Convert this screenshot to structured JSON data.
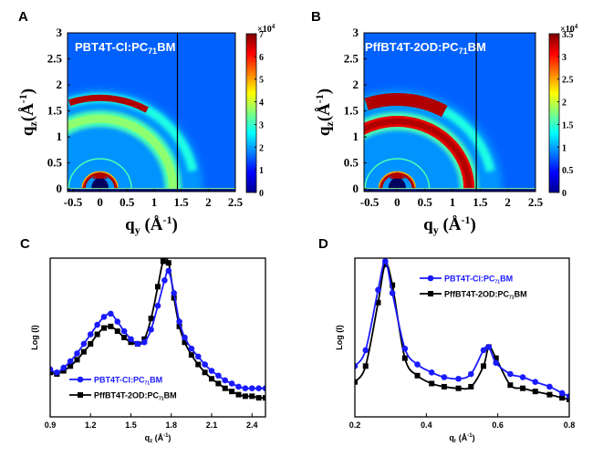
{
  "chart_data": [
    {
      "panel": "A",
      "type": "heatmap",
      "title": "PBT4T-Cl:PC71BM",
      "title_parts": {
        "main": "PBT4T-Cl:PC",
        "sub": "71",
        "tail": "BM"
      },
      "xlabel": "q_y (Å^-1)",
      "ylabel": "q_z (Å^-1)",
      "xlim": [
        -0.6,
        2.5
      ],
      "ylim": [
        -0.05,
        3
      ],
      "xticks": [
        "-0.5",
        "0",
        "0.5",
        "1",
        "1.5",
        "2",
        "2.5"
      ],
      "xtick_values": [
        -0.5,
        0,
        0.5,
        1,
        1.5,
        2,
        2.5
      ],
      "yticks": [
        "0",
        "0.5",
        "1",
        "1.5",
        "2",
        "2.5",
        "3"
      ],
      "ytick_values": [
        0,
        0.5,
        1,
        1.5,
        2,
        2.5,
        3
      ],
      "colorbar": {
        "min": 0,
        "max": 7,
        "multiplier": "×10^4",
        "ticks": [
          "0",
          "1",
          "2",
          "3",
          "4",
          "5",
          "6",
          "7"
        ]
      },
      "features": [
        {
          "name": "lamellar ring",
          "q": 0.3,
          "intensity": 7
        },
        {
          "name": "second-order ring",
          "q": 0.58,
          "intensity": 2.5
        },
        {
          "name": "pi-pi arc (out-of-plane)",
          "q": 1.75,
          "intensity": 7
        },
        {
          "name": "amorphous ring",
          "q": 1.35,
          "intensity": 4
        },
        {
          "name": "detector gap",
          "q": 1.43
        }
      ],
      "colormap": "jet"
    },
    {
      "panel": "B",
      "type": "heatmap",
      "title": "PffBT4T-2OD:PC71BM",
      "title_parts": {
        "main": "PffBT4T-2OD:PC",
        "sub": "71",
        "tail": "BM"
      },
      "xlabel": "q_y (Å^-1)",
      "ylabel": "q_z (Å^-1)",
      "xlim": [
        -0.6,
        2.5
      ],
      "ylim": [
        -0.05,
        3
      ],
      "xticks": [
        "-0.5",
        "0",
        "0.5",
        "1",
        "1.5",
        "2",
        "2.5"
      ],
      "xtick_values": [
        -0.5,
        0,
        0.5,
        1,
        1.5,
        2,
        2.5
      ],
      "yticks": [
        "0",
        "0.5",
        "1",
        "1.5",
        "2",
        "2.5",
        "3"
      ],
      "ytick_values": [
        0,
        0.5,
        1,
        1.5,
        2,
        2.5,
        3
      ],
      "colorbar": {
        "min": 0,
        "max": 3.5,
        "multiplier": "×10^4",
        "ticks": [
          "0",
          "0.5",
          "1",
          "1.5",
          "2",
          "2.5",
          "3",
          "3.5"
        ]
      },
      "features": [
        {
          "name": "lamellar ring",
          "q": 0.3,
          "intensity": 3.5
        },
        {
          "name": "second-order ring",
          "q": 0.58,
          "intensity": 3
        },
        {
          "name": "pi-pi arc (out-of-plane)",
          "q": 1.72,
          "intensity": 3.5
        },
        {
          "name": "amorphous ring",
          "q": 1.3,
          "intensity": 3.5
        },
        {
          "name": "detector gap",
          "q": 1.43
        }
      ],
      "colormap": "jet"
    },
    {
      "panel": "C",
      "type": "line",
      "xlabel": "q_z (Å^-1)",
      "ylabel": "Log (I)",
      "xlim": [
        0.9,
        2.5
      ],
      "ylim": [
        0,
        1
      ],
      "xticks": [
        "0.9",
        "1.2",
        "1.5",
        "1.8",
        "2.1",
        "2.4"
      ],
      "xtick_values": [
        0.9,
        1.2,
        1.5,
        1.8,
        2.1,
        2.4
      ],
      "legend_position": "lower-left",
      "series": [
        {
          "name": "PBT4T-Cl:PC71BM",
          "name_parts": {
            "main": "PBT4T-Cl:PC",
            "sub": "71",
            "tail": "BM"
          },
          "color": "#1a1aff",
          "marker": "circle",
          "x": [
            0.9,
            0.95,
            1.0,
            1.05,
            1.1,
            1.15,
            1.2,
            1.25,
            1.3,
            1.35,
            1.4,
            1.45,
            1.5,
            1.55,
            1.6,
            1.65,
            1.7,
            1.75,
            1.78,
            1.82,
            1.86,
            1.9,
            1.95,
            2.0,
            2.05,
            2.1,
            2.15,
            2.2,
            2.25,
            2.3,
            2.35,
            2.4,
            2.45,
            2.5
          ],
          "y": [
            0.3,
            0.28,
            0.31,
            0.35,
            0.4,
            0.46,
            0.52,
            0.58,
            0.63,
            0.65,
            0.6,
            0.54,
            0.49,
            0.46,
            0.47,
            0.55,
            0.7,
            0.86,
            0.92,
            0.78,
            0.6,
            0.5,
            0.43,
            0.38,
            0.33,
            0.29,
            0.26,
            0.23,
            0.21,
            0.19,
            0.18,
            0.18,
            0.18,
            0.18
          ]
        },
        {
          "name": "PffBT4T-2OD:PC71BM",
          "name_parts": {
            "main": "PffBT4T-2OD:PC",
            "sub": "71",
            "tail": "BM"
          },
          "color": "#000000",
          "marker": "square",
          "x": [
            0.9,
            0.95,
            1.0,
            1.05,
            1.1,
            1.15,
            1.2,
            1.25,
            1.3,
            1.35,
            1.4,
            1.45,
            1.5,
            1.55,
            1.6,
            1.65,
            1.7,
            1.74,
            1.78,
            1.82,
            1.86,
            1.9,
            1.95,
            2.0,
            2.05,
            2.1,
            2.15,
            2.2,
            2.25,
            2.3,
            2.35,
            2.4,
            2.45,
            2.5
          ],
          "y": [
            0.28,
            0.27,
            0.29,
            0.32,
            0.36,
            0.41,
            0.46,
            0.52,
            0.56,
            0.57,
            0.54,
            0.5,
            0.47,
            0.46,
            0.49,
            0.62,
            0.82,
            0.98,
            0.97,
            0.75,
            0.57,
            0.47,
            0.39,
            0.33,
            0.28,
            0.24,
            0.21,
            0.18,
            0.16,
            0.14,
            0.13,
            0.13,
            0.12,
            0.12
          ]
        }
      ]
    },
    {
      "panel": "D",
      "type": "line",
      "xlabel": "q_r (Å^-1)",
      "ylabel": "Log (I)",
      "xlim": [
        0.2,
        0.8
      ],
      "ylim": [
        0,
        1
      ],
      "xticks": [
        "0.2",
        "0.4",
        "0.6",
        "0.8"
      ],
      "xtick_values": [
        0.2,
        0.4,
        0.6,
        0.8
      ],
      "legend_position": "top-right",
      "series": [
        {
          "name": "PBT4T-Cl:PC71BM",
          "name_parts": {
            "main": "PBT4T-Cl:PC",
            "sub": "71",
            "tail": "BM"
          },
          "color": "#1a1aff",
          "marker": "circle",
          "x": [
            0.2,
            0.23,
            0.265,
            0.285,
            0.305,
            0.34,
            0.375,
            0.415,
            0.45,
            0.49,
            0.525,
            0.56,
            0.575,
            0.595,
            0.635,
            0.67,
            0.705,
            0.745,
            0.78,
            0.8
          ],
          "y": [
            0.32,
            0.42,
            0.8,
            0.98,
            0.78,
            0.43,
            0.33,
            0.28,
            0.25,
            0.24,
            0.27,
            0.42,
            0.44,
            0.34,
            0.27,
            0.25,
            0.22,
            0.19,
            0.15,
            0.13
          ]
        },
        {
          "name": "PffBT4T-2OD:PC71BM",
          "name_parts": {
            "main": "PffBT4T-2OD:PC",
            "sub": "71",
            "tail": "BM"
          },
          "color": "#000000",
          "marker": "square",
          "x": [
            0.2,
            0.23,
            0.265,
            0.285,
            0.305,
            0.34,
            0.375,
            0.415,
            0.45,
            0.49,
            0.525,
            0.56,
            0.575,
            0.595,
            0.635,
            0.67,
            0.705,
            0.745,
            0.78,
            0.8
          ],
          "y": [
            0.22,
            0.32,
            0.72,
            0.96,
            0.83,
            0.37,
            0.26,
            0.21,
            0.19,
            0.18,
            0.19,
            0.32,
            0.44,
            0.37,
            0.2,
            0.18,
            0.16,
            0.14,
            0.12,
            0.11
          ]
        }
      ]
    }
  ],
  "panels": {
    "A": {
      "letter": "A",
      "ylabel_main": "q",
      "ylabel_sub": "z",
      "xlabel_main": "q",
      "xlabel_sub": "y",
      "unit_paren_open": "(Å",
      "unit_exp": "-1",
      "unit_paren_close": ")",
      "cb_mult": "×10",
      "cb_exp": "4"
    },
    "B": {
      "letter": "B",
      "ylabel_main": "q",
      "ylabel_sub": "z",
      "xlabel_main": "q",
      "xlabel_sub": "y",
      "unit_paren_open": "(Å",
      "unit_exp": "-1",
      "unit_paren_close": ")",
      "cb_mult": "×10",
      "cb_exp": "4"
    },
    "C": {
      "letter": "C",
      "ylabel": "Log (I)",
      "xlabel_main": "q",
      "xlabel_sub": "z",
      "unit_open": " (Å",
      "unit_exp": "-1",
      "unit_close": ")"
    },
    "D": {
      "letter": "D",
      "ylabel": "Log (I)",
      "xlabel_main": "q",
      "xlabel_sub": "r",
      "unit_open": " (Å",
      "unit_exp": "-1",
      "unit_close": ")"
    }
  }
}
